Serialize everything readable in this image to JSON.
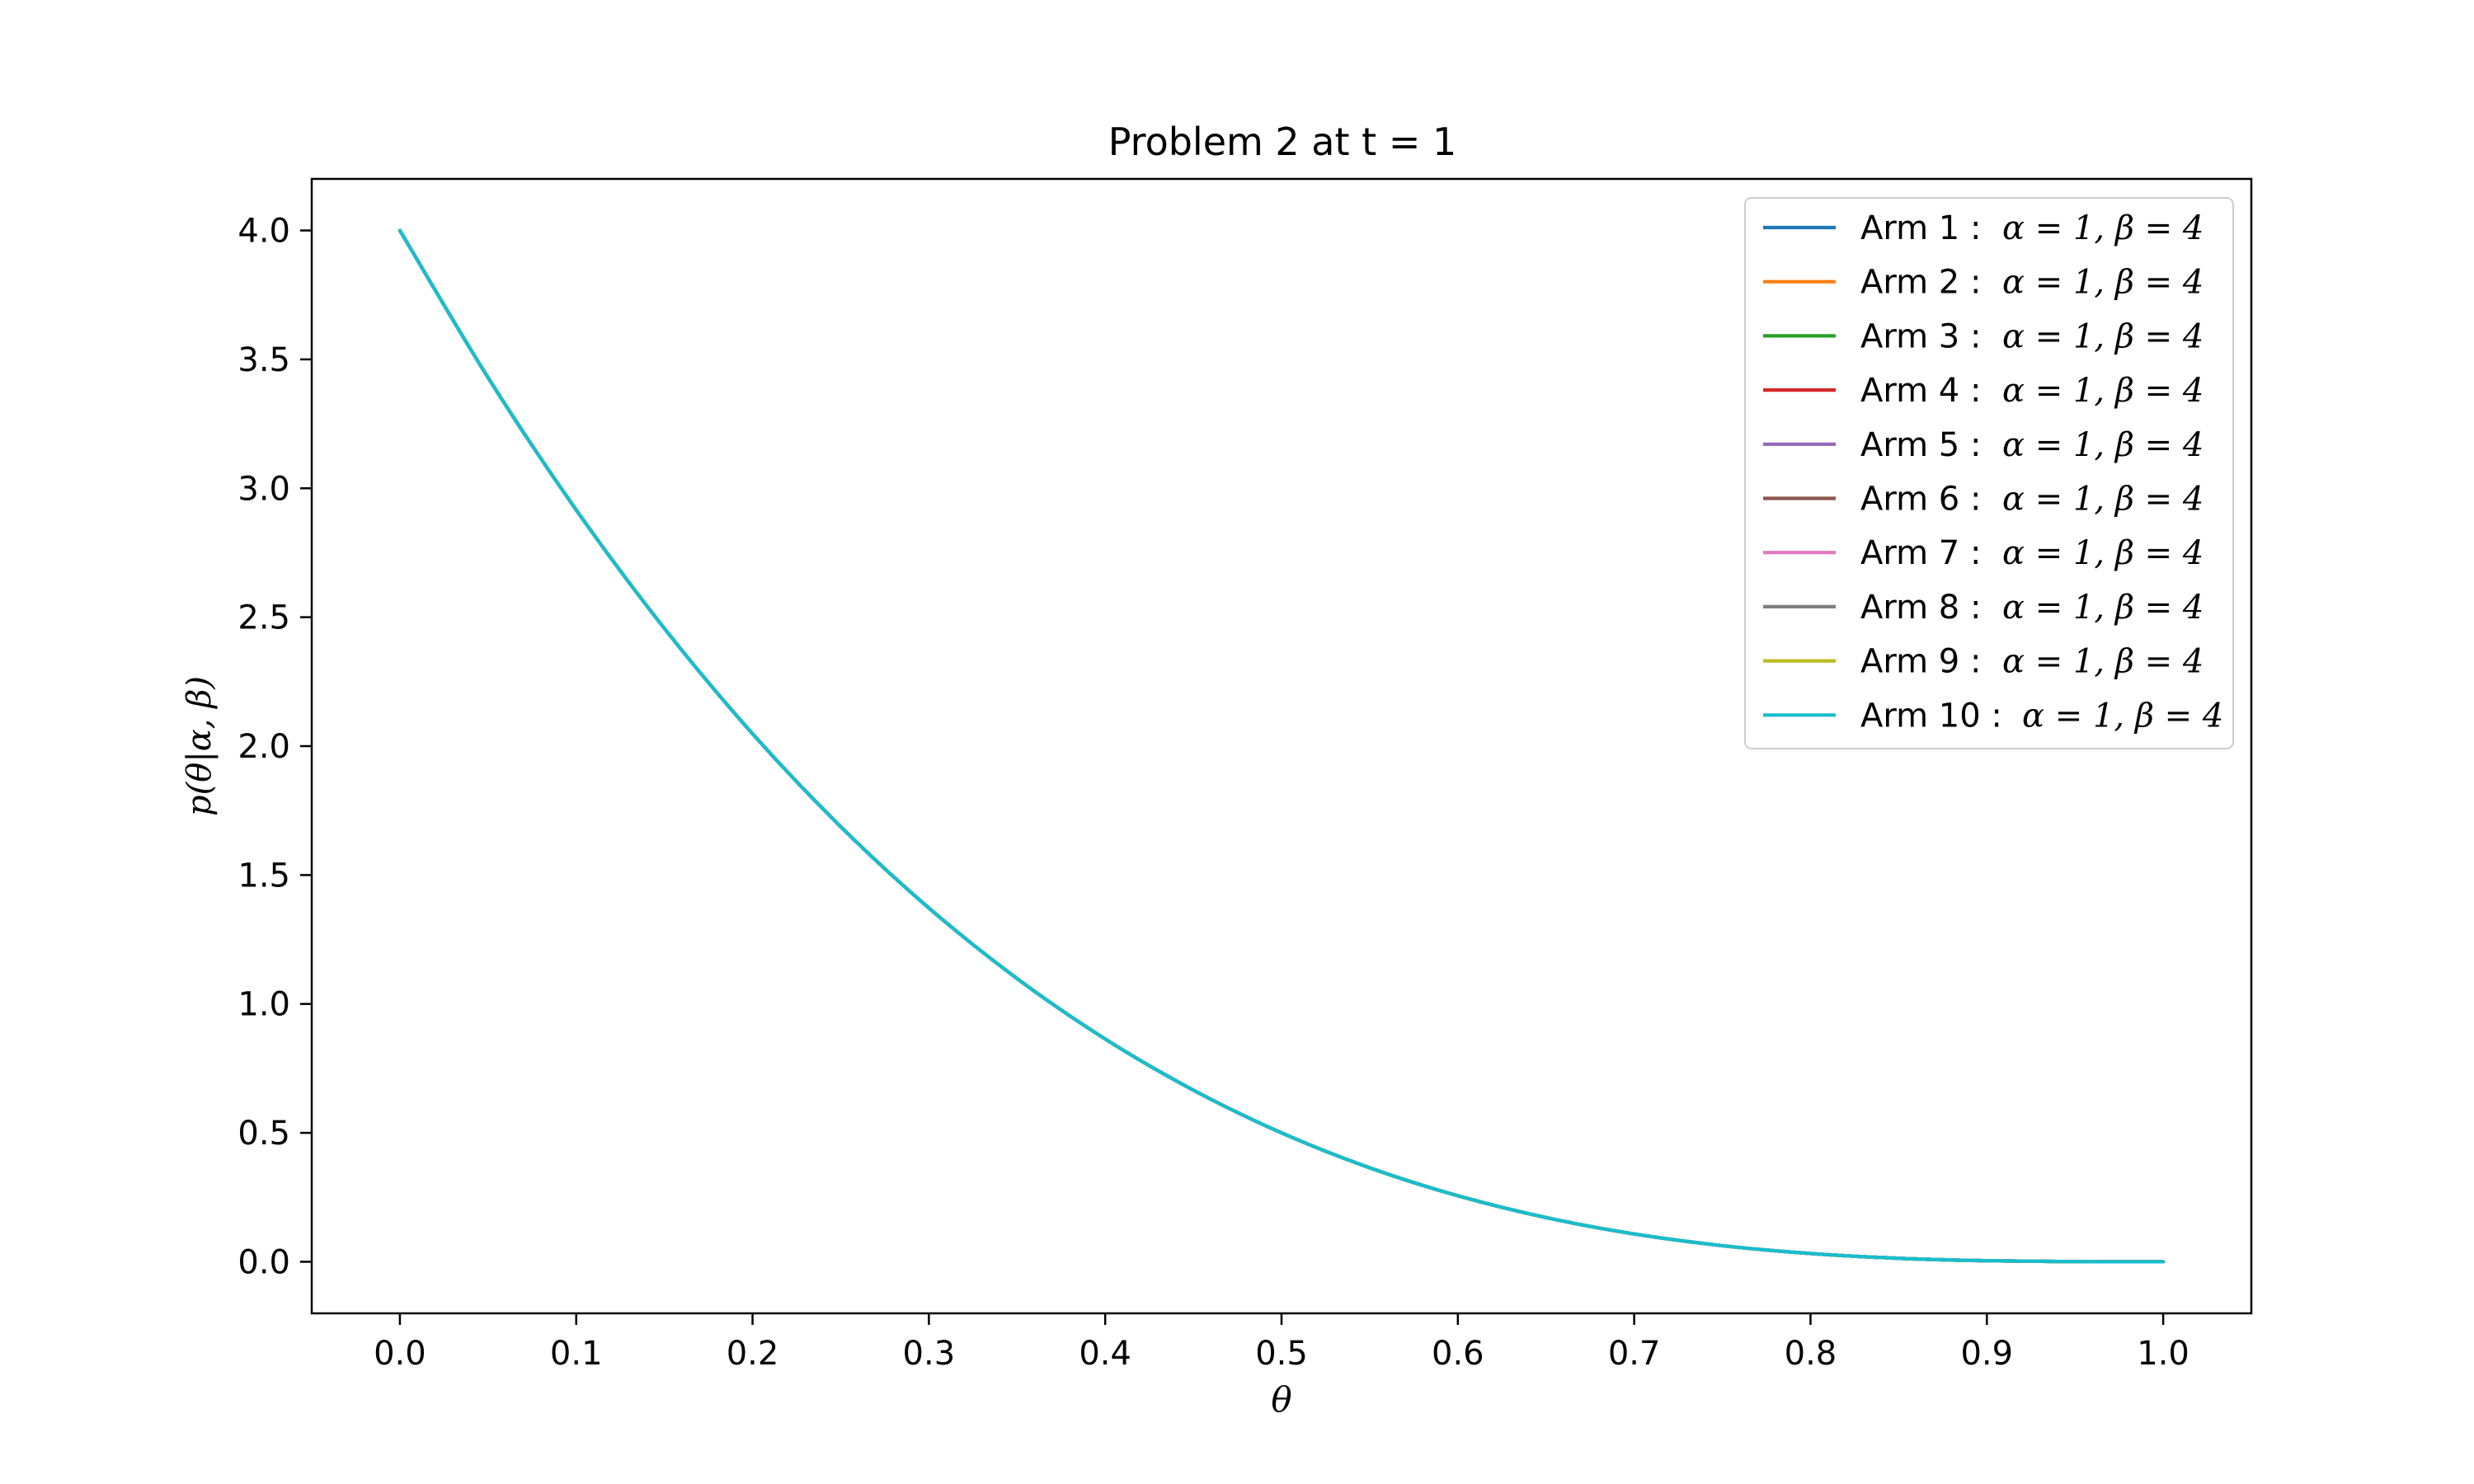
{
  "chart_data": {
    "type": "line",
    "title": "Problem 2 at t = 1",
    "xlabel": "θ",
    "ylabel": "p(θ|α, β)",
    "xlim": [
      -0.05,
      1.05
    ],
    "ylim": [
      -0.2,
      4.2
    ],
    "xticks": [
      0.0,
      0.1,
      0.2,
      0.3,
      0.4,
      0.5,
      0.6,
      0.7,
      0.8,
      0.9,
      1.0
    ],
    "xtick_labels": [
      "0.0",
      "0.1",
      "0.2",
      "0.3",
      "0.4",
      "0.5",
      "0.6",
      "0.7",
      "0.8",
      "0.9",
      "1.0"
    ],
    "yticks": [
      0.0,
      0.5,
      1.0,
      1.5,
      2.0,
      2.5,
      3.0,
      3.5,
      4.0
    ],
    "ytick_labels": [
      "0.0",
      "0.5",
      "1.0",
      "1.5",
      "2.0",
      "2.5",
      "3.0",
      "3.5",
      "4.0"
    ],
    "grid": false,
    "legend_position": "top-right",
    "x": [
      0.0,
      0.05,
      0.1,
      0.15,
      0.2,
      0.25,
      0.3,
      0.35,
      0.4,
      0.45,
      0.5,
      0.55,
      0.6,
      0.65,
      0.7,
      0.75,
      0.8,
      0.85,
      0.9,
      0.95,
      1.0
    ],
    "series": [
      {
        "name": "Arm 1 : α = 1,  β = 4",
        "legend_arm": "Arm 1 :",
        "legend_params": "α = 1,  β = 4",
        "color": "#1f77b4",
        "values": [
          4.0,
          3.4295,
          2.916,
          2.4565,
          2.048,
          1.6875,
          1.372,
          1.0985,
          0.864,
          0.6655,
          0.5,
          0.3645,
          0.256,
          0.1715,
          0.108,
          0.0625,
          0.032,
          0.0135,
          0.004,
          0.0005,
          0.0
        ]
      },
      {
        "name": "Arm 2 : α = 1,  β = 4",
        "legend_arm": "Arm 2 :",
        "legend_params": "α = 1,  β = 4",
        "color": "#ff7f0e",
        "values": [
          4.0,
          3.4295,
          2.916,
          2.4565,
          2.048,
          1.6875,
          1.372,
          1.0985,
          0.864,
          0.6655,
          0.5,
          0.3645,
          0.256,
          0.1715,
          0.108,
          0.0625,
          0.032,
          0.0135,
          0.004,
          0.0005,
          0.0
        ]
      },
      {
        "name": "Arm 3 : α = 1,  β = 4",
        "legend_arm": "Arm 3 :",
        "legend_params": "α = 1,  β = 4",
        "color": "#2ca02c",
        "values": [
          4.0,
          3.4295,
          2.916,
          2.4565,
          2.048,
          1.6875,
          1.372,
          1.0985,
          0.864,
          0.6655,
          0.5,
          0.3645,
          0.256,
          0.1715,
          0.108,
          0.0625,
          0.032,
          0.0135,
          0.004,
          0.0005,
          0.0
        ]
      },
      {
        "name": "Arm 4 : α = 1,  β = 4",
        "legend_arm": "Arm 4 :",
        "legend_params": "α = 1,  β = 4",
        "color": "#d62728",
        "values": [
          4.0,
          3.4295,
          2.916,
          2.4565,
          2.048,
          1.6875,
          1.372,
          1.0985,
          0.864,
          0.6655,
          0.5,
          0.3645,
          0.256,
          0.1715,
          0.108,
          0.0625,
          0.032,
          0.0135,
          0.004,
          0.0005,
          0.0
        ]
      },
      {
        "name": "Arm 5 : α = 1,  β = 4",
        "legend_arm": "Arm 5 :",
        "legend_params": "α = 1,  β = 4",
        "color": "#9467bd",
        "values": [
          4.0,
          3.4295,
          2.916,
          2.4565,
          2.048,
          1.6875,
          1.372,
          1.0985,
          0.864,
          0.6655,
          0.5,
          0.3645,
          0.256,
          0.1715,
          0.108,
          0.0625,
          0.032,
          0.0135,
          0.004,
          0.0005,
          0.0
        ]
      },
      {
        "name": "Arm 6 : α = 1,  β = 4",
        "legend_arm": "Arm 6 :",
        "legend_params": "α = 1,  β = 4",
        "color": "#8c564b",
        "values": [
          4.0,
          3.4295,
          2.916,
          2.4565,
          2.048,
          1.6875,
          1.372,
          1.0985,
          0.864,
          0.6655,
          0.5,
          0.3645,
          0.256,
          0.1715,
          0.108,
          0.0625,
          0.032,
          0.0135,
          0.004,
          0.0005,
          0.0
        ]
      },
      {
        "name": "Arm 7 : α = 1,  β = 4",
        "legend_arm": "Arm 7 :",
        "legend_params": "α = 1,  β = 4",
        "color": "#e377c2",
        "values": [
          4.0,
          3.4295,
          2.916,
          2.4565,
          2.048,
          1.6875,
          1.372,
          1.0985,
          0.864,
          0.6655,
          0.5,
          0.3645,
          0.256,
          0.1715,
          0.108,
          0.0625,
          0.032,
          0.0135,
          0.004,
          0.0005,
          0.0
        ]
      },
      {
        "name": "Arm 8 : α = 1,  β = 4",
        "legend_arm": "Arm 8 :",
        "legend_params": "α = 1,  β = 4",
        "color": "#7f7f7f",
        "values": [
          4.0,
          3.4295,
          2.916,
          2.4565,
          2.048,
          1.6875,
          1.372,
          1.0985,
          0.864,
          0.6655,
          0.5,
          0.3645,
          0.256,
          0.1715,
          0.108,
          0.0625,
          0.032,
          0.0135,
          0.004,
          0.0005,
          0.0
        ]
      },
      {
        "name": "Arm 9 : α = 1,  β = 4",
        "legend_arm": "Arm 9 :",
        "legend_params": "α = 1,  β = 4",
        "color": "#bcbd22",
        "values": [
          4.0,
          3.4295,
          2.916,
          2.4565,
          2.048,
          1.6875,
          1.372,
          1.0985,
          0.864,
          0.6655,
          0.5,
          0.3645,
          0.256,
          0.1715,
          0.108,
          0.0625,
          0.032,
          0.0135,
          0.004,
          0.0005,
          0.0
        ]
      },
      {
        "name": "Arm 10 : α = 1,  β = 4",
        "legend_arm": "Arm 10 :",
        "legend_params": "α = 1,  β = 4",
        "color": "#17becf",
        "values": [
          4.0,
          3.4295,
          2.916,
          2.4565,
          2.048,
          1.6875,
          1.372,
          1.0985,
          0.864,
          0.6655,
          0.5,
          0.3645,
          0.256,
          0.1715,
          0.108,
          0.0625,
          0.032,
          0.0135,
          0.004,
          0.0005,
          0.0
        ]
      }
    ]
  }
}
